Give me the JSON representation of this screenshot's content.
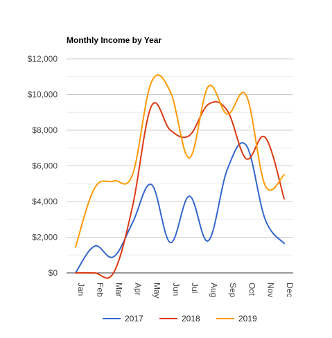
{
  "chart_data": {
    "type": "line",
    "title": "Monthly Income by Year",
    "xlabel": "",
    "ylabel": "",
    "categories": [
      "Jan",
      "Feb",
      "Mar",
      "Apr",
      "May",
      "Jun",
      "Jul",
      "Aug",
      "Sep",
      "Oct",
      "Nov",
      "Dec"
    ],
    "y_ticks": [
      "$0",
      "$2,000",
      "$4,000",
      "$6,000",
      "$8,000",
      "$10,000",
      "$12,000"
    ],
    "ylim": [
      0,
      12000
    ],
    "grid": true,
    "legend_position": "bottom",
    "series": [
      {
        "name": "2017",
        "color": "#3366cc",
        "values": [
          0,
          1500,
          900,
          2800,
          4950,
          1700,
          4300,
          1800,
          5800,
          7150,
          3000,
          1650
        ]
      },
      {
        "name": "2018",
        "color": "#dc3912",
        "values": [
          0,
          0,
          0,
          3700,
          9350,
          8000,
          7700,
          9450,
          9100,
          6400,
          7600,
          4150
        ]
      },
      {
        "name": "2019",
        "color": "#ff9900",
        "values": [
          1450,
          4750,
          5150,
          5500,
          10700,
          10150,
          6450,
          10450,
          8900,
          9950,
          4900,
          5500
        ]
      }
    ]
  }
}
